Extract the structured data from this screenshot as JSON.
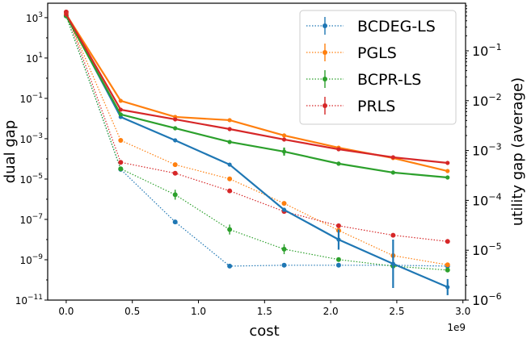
{
  "chart_data": {
    "type": "line",
    "xlabel": "cost",
    "ylabel_left": "dual gap",
    "ylabel_right": "utility gap (average)",
    "x_offset_label": "1e9",
    "x_scale": "linear",
    "y_left_scale": "log",
    "y_right_scale": "log",
    "xlim": [
      -140000000.0,
      3020000000.0
    ],
    "ylim_left": [
      1e-11,
      5200.0
    ],
    "ylim_right": [
      1e-06,
      0.9
    ],
    "x_ticks": [
      0,
      500000000.0,
      1000000000.0,
      1500000000.0,
      2000000000.0,
      2500000000.0,
      3000000000.0
    ],
    "x_tick_labels": [
      "0.0",
      "0.5",
      "1.0",
      "1.5",
      "2.0",
      "2.5",
      "3.0"
    ],
    "y_left_ticks": [
      1000.0,
      10.0,
      0.1,
      0.001,
      1e-05,
      1e-07,
      1e-09,
      1e-11
    ],
    "y_left_tick_labels": [
      [
        "10",
        "3"
      ],
      [
        "10",
        "1"
      ],
      [
        "10",
        "−1"
      ],
      [
        "10",
        "−3"
      ],
      [
        "10",
        "−5"
      ],
      [
        "10",
        "−7"
      ],
      [
        "10",
        "−9"
      ],
      [
        "10",
        "−11"
      ]
    ],
    "y_right_ticks": [
      0.1,
      0.01,
      0.001,
      0.0001,
      1e-05,
      1e-06
    ],
    "y_right_tick_labels": [
      [
        "10",
        "−1"
      ],
      [
        "10",
        "−2"
      ],
      [
        "10",
        "−3"
      ],
      [
        "10",
        "−4"
      ],
      [
        "10",
        "−5"
      ],
      [
        "10",
        "−6"
      ]
    ],
    "x": [
      0,
      412000000.0,
      824000000.0,
      1236000000.0,
      1648000000.0,
      2060000000.0,
      2472000000.0,
      2884000000.0
    ],
    "legend": {
      "placement": "top-right",
      "entries": [
        "BCDEG-LS",
        "PGLS",
        "BCPR-LS",
        "PRLS"
      ]
    },
    "colors": {
      "BCDEG-LS": "#1f77b4",
      "PGLS": "#ff7f0e",
      "BCPR-LS": "#2ca02c",
      "PRLS": "#d62728"
    },
    "series": [
      {
        "name": "BCDEG-LS",
        "axis": "left",
        "style": "solid",
        "values": [
          1450,
          0.012,
          0.00083,
          5.2e-05,
          3e-07,
          1e-08,
          6.3e-10,
          4.4e-11
        ],
        "err_log10": [
          0,
          0,
          0,
          0,
          0.1,
          0.5,
          1.2,
          0.4
        ]
      },
      {
        "name": "PGLS",
        "axis": "left",
        "style": "solid",
        "values": [
          1450,
          0.076,
          0.012,
          0.0083,
          0.00145,
          0.00036,
          0.00011,
          2.5e-05
        ],
        "err_log10": [
          0,
          0,
          0,
          0,
          0,
          0,
          0,
          0
        ]
      },
      {
        "name": "BCPR-LS",
        "axis": "left",
        "style": "solid",
        "values": [
          1200,
          0.016,
          0.0033,
          0.00069,
          0.00023,
          5.8e-05,
          2.1e-05,
          1.2e-05
        ],
        "err_log10": [
          0,
          0,
          0.1,
          0,
          0.2,
          0.1,
          0,
          0
        ]
      },
      {
        "name": "PRLS",
        "axis": "left",
        "style": "solid",
        "values": [
          1450,
          0.0275,
          0.0091,
          0.003,
          0.00091,
          0.0003,
          0.00012,
          6.3e-05
        ],
        "err_log10": [
          0,
          0,
          0,
          0,
          0,
          0,
          0,
          0
        ]
      },
      {
        "name": "BCDEG-LS",
        "axis": "right",
        "style": "dotted",
        "values": [
          0.5,
          0.00042,
          3.7e-05,
          4.8e-06,
          5e-06,
          5e-06,
          5e-06,
          4.8e-06
        ],
        "err_log10": [
          0,
          0,
          0,
          0,
          0,
          0,
          0,
          0
        ]
      },
      {
        "name": "PGLS",
        "axis": "right",
        "style": "dotted",
        "values": [
          0.55,
          0.0016,
          0.00052,
          0.00027,
          8.7e-05,
          2.5e-05,
          7.8e-06,
          5.1e-06
        ],
        "err_log10": [
          0,
          0,
          0,
          0,
          0,
          0,
          0,
          0
        ]
      },
      {
        "name": "BCPR-LS",
        "axis": "right",
        "style": "dotted",
        "values": [
          0.5,
          0.00043,
          0.00013,
          2.6e-05,
          1.05e-05,
          6.5e-06,
          4.8e-06,
          4e-06
        ],
        "err_log10": [
          0,
          0,
          0.1,
          0.1,
          0.1,
          0,
          0,
          0
        ]
      },
      {
        "name": "PRLS",
        "axis": "right",
        "style": "dotted",
        "values": [
          0.6,
          0.00058,
          0.00035,
          0.000155,
          6e-05,
          3.1e-05,
          2e-05,
          1.5e-05
        ],
        "err_log10": [
          0,
          0,
          0,
          0,
          0,
          0,
          0,
          0
        ]
      }
    ]
  }
}
